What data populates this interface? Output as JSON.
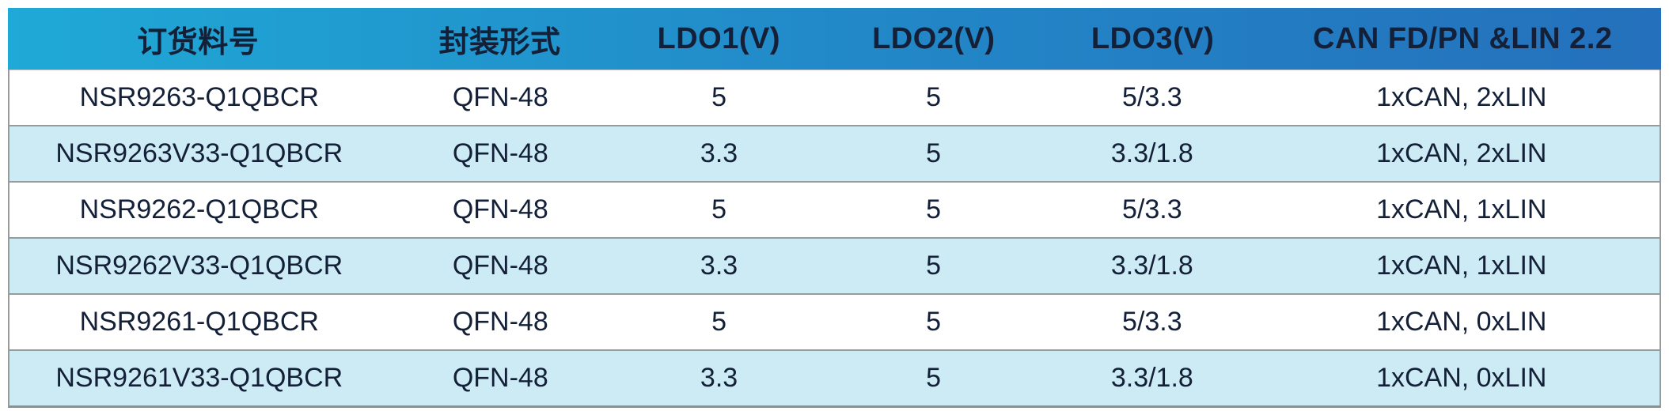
{
  "table": {
    "columns": [
      {
        "key": "part-number",
        "label": "订货料号"
      },
      {
        "key": "package",
        "label": "封装形式"
      },
      {
        "key": "ldo1",
        "label": "LDO1(V)"
      },
      {
        "key": "ldo2",
        "label": "LDO2(V)"
      },
      {
        "key": "ldo3",
        "label": "LDO3(V)"
      },
      {
        "key": "can-lin",
        "label": "CAN FD/PN &LIN 2.2"
      }
    ],
    "rows": [
      [
        "NSR9263-Q1QBCR",
        "QFN-48",
        "5",
        "5",
        "5/3.3",
        "1xCAN, 2xLIN"
      ],
      [
        "NSR9263V33-Q1QBCR",
        "QFN-48",
        "3.3",
        "5",
        "3.3/1.8",
        "1xCAN, 2xLIN"
      ],
      [
        "NSR9262-Q1QBCR",
        "QFN-48",
        "5",
        "5",
        "5/3.3",
        "1xCAN, 1xLIN"
      ],
      [
        "NSR9262V33-Q1QBCR",
        "QFN-48",
        "3.3",
        "5",
        "3.3/1.8",
        "1xCAN, 1xLIN"
      ],
      [
        "NSR9261-Q1QBCR",
        "QFN-48",
        "5",
        "5",
        "5/3.3",
        "1xCAN, 0xLIN"
      ],
      [
        "NSR9261V33-Q1QBCR",
        "QFN-48",
        "3.3",
        "5",
        "3.3/1.8",
        "1xCAN, 0xLIN"
      ]
    ]
  },
  "colors": {
    "header_gradient_start": "#1FA9D6",
    "header_gradient_mid": "#2289C8",
    "header_gradient_end": "#2470BC",
    "header_text": "#FFFFFF",
    "row_background": "#FFFFFF",
    "row_alt_background": "#CDEBF5",
    "body_text": "#132038",
    "border": "#9A9A9A"
  }
}
